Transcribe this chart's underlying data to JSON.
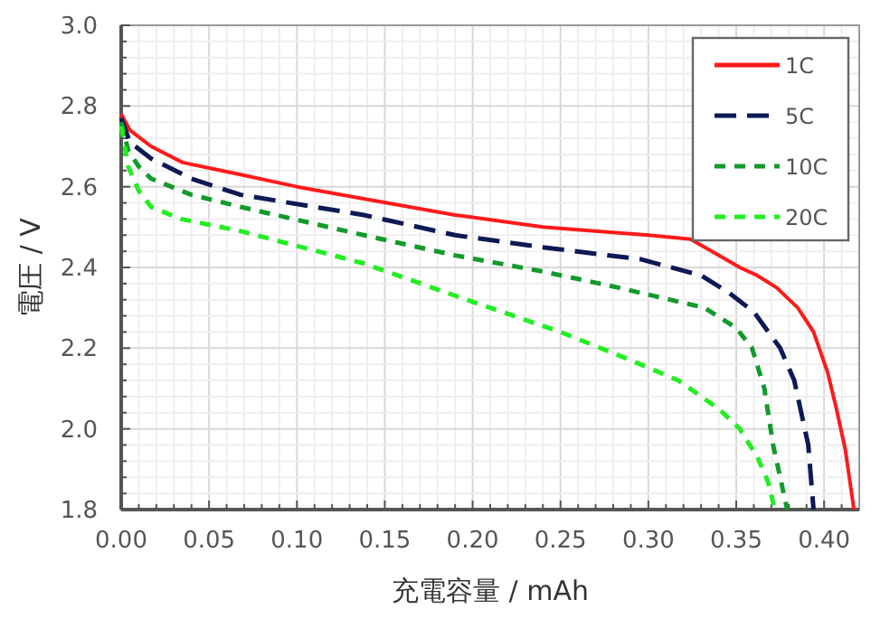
{
  "chart_data": {
    "type": "line",
    "xlabel": "充電容量 / mAh",
    "ylabel": "電圧 / V",
    "xlim": [
      0,
      0.42
    ],
    "ylim": [
      1.8,
      3.0
    ],
    "xticks": [
      {
        "value": 0,
        "label": "0.00"
      },
      {
        "value": 0.01,
        "label": null
      },
      {
        "value": 0.02,
        "label": null
      },
      {
        "value": 0.03,
        "label": null
      },
      {
        "value": 0.04,
        "label": null
      },
      {
        "value": 0.05,
        "label": "0.05"
      },
      {
        "value": 0.06,
        "label": null
      },
      {
        "value": 0.07,
        "label": null
      },
      {
        "value": 0.08,
        "label": null
      },
      {
        "value": 0.09,
        "label": null
      },
      {
        "value": 0.1,
        "label": "0.10"
      },
      {
        "value": 0.11,
        "label": null
      },
      {
        "value": 0.12,
        "label": null
      },
      {
        "value": 0.13,
        "label": null
      },
      {
        "value": 0.14,
        "label": null
      },
      {
        "value": 0.15,
        "label": "0.15"
      },
      {
        "value": 0.16,
        "label": null
      },
      {
        "value": 0.17,
        "label": null
      },
      {
        "value": 0.18,
        "label": null
      },
      {
        "value": 0.19,
        "label": null
      },
      {
        "value": 0.2,
        "label": "0.20"
      },
      {
        "value": 0.21,
        "label": null
      },
      {
        "value": 0.22,
        "label": null
      },
      {
        "value": 0.23,
        "label": null
      },
      {
        "value": 0.24,
        "label": null
      },
      {
        "value": 0.25,
        "label": "0.25"
      },
      {
        "value": 0.26,
        "label": null
      },
      {
        "value": 0.27,
        "label": null
      },
      {
        "value": 0.28,
        "label": null
      },
      {
        "value": 0.29,
        "label": null
      },
      {
        "value": 0.3,
        "label": "0.30"
      },
      {
        "value": 0.31,
        "label": null
      },
      {
        "value": 0.32,
        "label": null
      },
      {
        "value": 0.33,
        "label": null
      },
      {
        "value": 0.34,
        "label": null
      },
      {
        "value": 0.35,
        "label": "0.35"
      },
      {
        "value": 0.36,
        "label": null
      },
      {
        "value": 0.37,
        "label": null
      },
      {
        "value": 0.38,
        "label": null
      },
      {
        "value": 0.39,
        "label": null
      },
      {
        "value": 0.4,
        "label": "0.40"
      },
      {
        "value": 0.41,
        "label": null
      }
    ],
    "yticks": [
      {
        "value": 1.8,
        "label": "1.8"
      },
      {
        "value": 1.84,
        "label": null
      },
      {
        "value": 1.88,
        "label": null
      },
      {
        "value": 1.92,
        "label": null
      },
      {
        "value": 1.96,
        "label": null
      },
      {
        "value": 2.0,
        "label": "2.0"
      },
      {
        "value": 2.04,
        "label": null
      },
      {
        "value": 2.08,
        "label": null
      },
      {
        "value": 2.12,
        "label": null
      },
      {
        "value": 2.16,
        "label": null
      },
      {
        "value": 2.2,
        "label": "2.2"
      },
      {
        "value": 2.24,
        "label": null
      },
      {
        "value": 2.28,
        "label": null
      },
      {
        "value": 2.32,
        "label": null
      },
      {
        "value": 2.36,
        "label": null
      },
      {
        "value": 2.4,
        "label": "2.4"
      },
      {
        "value": 2.44,
        "label": null
      },
      {
        "value": 2.48,
        "label": null
      },
      {
        "value": 2.52,
        "label": null
      },
      {
        "value": 2.56,
        "label": null
      },
      {
        "value": 2.6,
        "label": "2.6"
      },
      {
        "value": 2.64,
        "label": null
      },
      {
        "value": 2.68,
        "label": null
      },
      {
        "value": 2.72,
        "label": null
      },
      {
        "value": 2.76,
        "label": null
      },
      {
        "value": 2.8,
        "label": "2.8"
      },
      {
        "value": 2.84,
        "label": null
      },
      {
        "value": 2.88,
        "label": null
      },
      {
        "value": 2.92,
        "label": null
      },
      {
        "value": 2.96,
        "label": null
      },
      {
        "value": 3.0,
        "label": "3.0"
      }
    ],
    "grid": true,
    "legend": "top right",
    "marker": "none",
    "series": [
      {
        "name": "1C",
        "color": "#ff1a1a",
        "line_style": "solid",
        "x": [
          0,
          0.005,
          0.017,
          0.035,
          0.068,
          0.1,
          0.138,
          0.19,
          0.24,
          0.3,
          0.324,
          0.34,
          0.352,
          0.362,
          0.373,
          0.385,
          0.394,
          0.402,
          0.407,
          0.412,
          0.417
        ],
        "values": [
          2.78,
          2.74,
          2.7,
          2.66,
          2.63,
          2.6,
          2.57,
          2.53,
          2.5,
          2.48,
          2.47,
          2.43,
          2.4,
          2.38,
          2.35,
          2.3,
          2.24,
          2.14,
          2.05,
          1.95,
          1.8
        ]
      },
      {
        "name": "5C",
        "color": "#0d1a55",
        "line_style": "dashed",
        "x": [
          0,
          0.005,
          0.017,
          0.04,
          0.068,
          0.138,
          0.19,
          0.24,
          0.296,
          0.33,
          0.345,
          0.36,
          0.375,
          0.383,
          0.391,
          0.394
        ],
        "values": [
          2.77,
          2.71,
          2.67,
          2.62,
          2.58,
          2.53,
          2.48,
          2.45,
          2.42,
          2.38,
          2.34,
          2.29,
          2.2,
          2.12,
          1.96,
          1.8
        ]
      },
      {
        "name": "10C",
        "color": "#139a2c",
        "line_style": "dashed",
        "x": [
          0,
          0.004,
          0.01,
          0.017,
          0.04,
          0.068,
          0.138,
          0.19,
          0.24,
          0.283,
          0.332,
          0.35,
          0.359,
          0.366,
          0.371,
          0.379
        ],
        "values": [
          2.76,
          2.69,
          2.65,
          2.62,
          2.58,
          2.55,
          2.48,
          2.43,
          2.39,
          2.35,
          2.3,
          2.25,
          2.2,
          2.1,
          1.96,
          1.8
        ]
      },
      {
        "name": "20C",
        "color": "#22ee22",
        "line_style": "dashed",
        "x": [
          0,
          0.004,
          0.01,
          0.017,
          0.034,
          0.068,
          0.138,
          0.19,
          0.25,
          0.29,
          0.317,
          0.34,
          0.352,
          0.362,
          0.368,
          0.372
        ],
        "values": [
          2.75,
          2.65,
          2.59,
          2.55,
          2.52,
          2.49,
          2.41,
          2.33,
          2.24,
          2.17,
          2.12,
          2.05,
          2.0,
          1.93,
          1.87,
          1.8
        ]
      }
    ]
  }
}
